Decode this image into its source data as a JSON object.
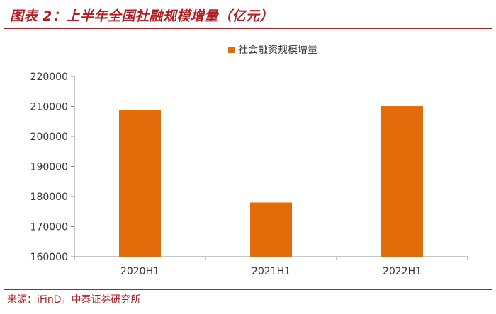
{
  "header": {
    "title": "图表 2：上半年全国社融规模增量（亿元）"
  },
  "footer": {
    "source_label": "来源：",
    "source_value": "iFinD，中泰证券研究所"
  },
  "colors": {
    "accent": "#b41e23",
    "bar": "#e36c0a",
    "axis": "#8c8c8c"
  },
  "chart_data": {
    "type": "bar",
    "categories": [
      "2020H1",
      "2021H1",
      "2022H1"
    ],
    "series": [
      {
        "name": "社会融资规模增量",
        "values": [
          208700,
          178000,
          210100
        ]
      }
    ],
    "y_ticks": [
      "220000",
      "210000",
      "200000",
      "190000",
      "180000",
      "170000",
      "160000"
    ],
    "ylim": [
      160000,
      220000
    ],
    "grid": false,
    "legend_position": "top-center"
  }
}
